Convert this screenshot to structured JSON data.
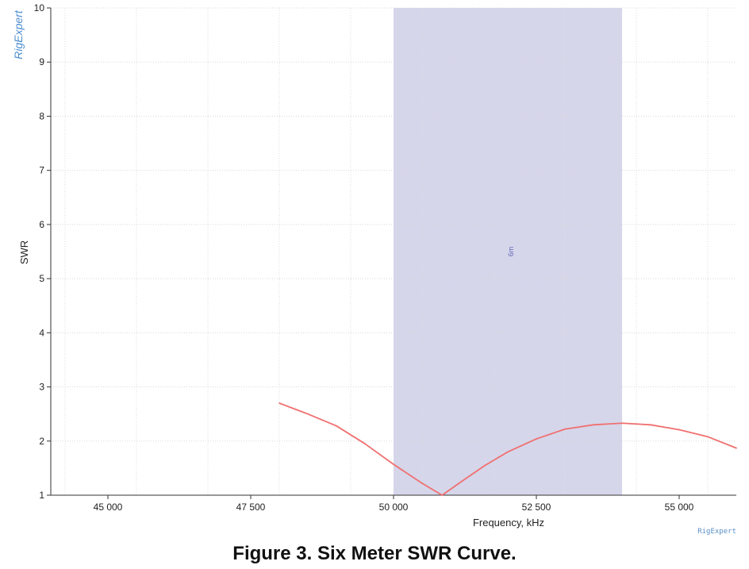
{
  "caption": "Figure 3.  Six Meter SWR Curve.",
  "watermark": "RigExpert",
  "chart_data": {
    "type": "line",
    "title": "",
    "xlabel": "Frequency, kHz",
    "ylabel": "SWR",
    "xlim": [
      44000,
      56000
    ],
    "ylim": [
      1,
      10
    ],
    "x_ticks": [
      45000,
      47500,
      50000,
      52500,
      55000
    ],
    "x_tick_labels": [
      "45 000",
      "47 500",
      "50 000",
      "52 500",
      "55 000"
    ],
    "y_ticks": [
      1,
      2,
      3,
      4,
      5,
      6,
      7,
      8,
      9,
      10
    ],
    "y_tick_labels": [
      "1",
      "2",
      "3",
      "4",
      "5",
      "6",
      "7",
      "8",
      "9",
      "10"
    ],
    "grid": true,
    "bands": [
      {
        "label": "6m",
        "x_start": 50000,
        "x_end": 54000,
        "color": "#d5d6ea"
      }
    ],
    "series": [
      {
        "color": "#f07070",
        "x": [
          48000,
          48500,
          49000,
          49500,
          50000,
          50500,
          50850,
          51200,
          51600,
          52000,
          52500,
          53000,
          53500,
          54000,
          54500,
          55000,
          55500,
          56000
        ],
        "y": [
          2.7,
          2.5,
          2.28,
          1.95,
          1.57,
          1.22,
          1.0,
          1.26,
          1.55,
          1.8,
          2.04,
          2.22,
          2.3,
          2.33,
          2.3,
          2.21,
          2.08,
          1.87
        ]
      }
    ]
  }
}
